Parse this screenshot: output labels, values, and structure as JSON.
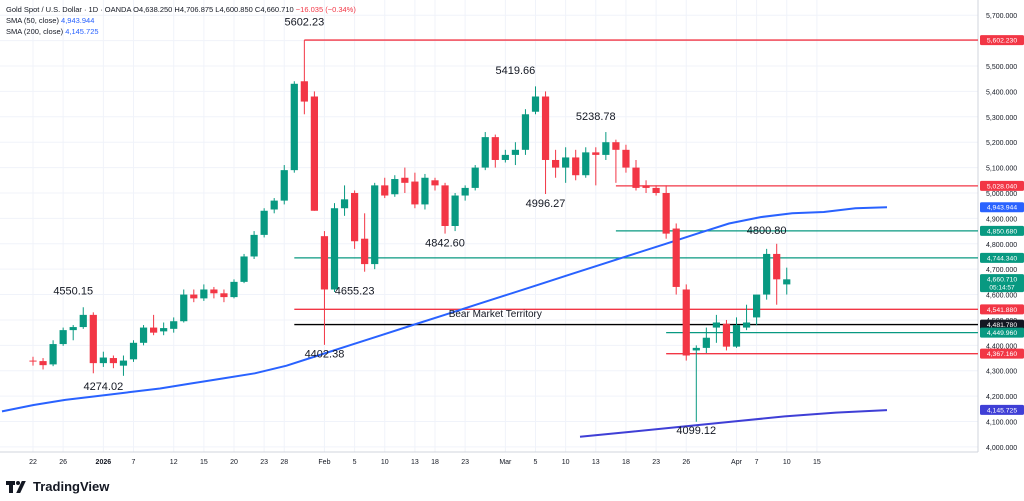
{
  "legend": {
    "symbol": "Gold Spot / U.S. Dollar · 1D · OANDA",
    "ohlc": "O4,638.250  H4,706.875  L4,600.850  C4,660.710",
    "change": "−16.035 (−0.34%)",
    "sma50_label": "SMA (50, close)",
    "sma50_value": "4,943.944",
    "sma200_label": "SMA (200, close)",
    "sma200_value": "4,145.725"
  },
  "brand": {
    "name": "TradingView"
  },
  "colors": {
    "up": "#089981",
    "down": "#f23645",
    "sma": "#2962ff",
    "sma200": "#3f3fd6",
    "red_line": "#f23645",
    "teal_line": "#089981",
    "black_line": "#000000"
  },
  "chart_data": {
    "type": "candlestick",
    "ylim": [
      3980,
      5760
    ],
    "y_ticks": [
      4000,
      4100,
      4200,
      4300,
      4400,
      4500,
      4600,
      4700,
      4800,
      4900,
      5000,
      5100,
      5200,
      5300,
      5400,
      5500,
      5600,
      5700
    ],
    "y_tick_labels": [
      "4,000.000",
      "4,100.000",
      "4,200.000",
      "4,300.000",
      "4,400.000",
      "4,500.000",
      "4,600.000",
      "4,700.000",
      "4,800.000",
      "4,900.000",
      "5,000.000",
      "5,100.000",
      "5,200.000",
      "5,300.000",
      "5,400.000",
      "5,500.000",
      "5,600.000",
      "5,700.000"
    ],
    "x_ticks": [
      {
        "index": 0,
        "label": "22"
      },
      {
        "index": 3,
        "label": "26"
      },
      {
        "index": 7,
        "label": "2026"
      },
      {
        "index": 10,
        "label": "7"
      },
      {
        "index": 14,
        "label": "12"
      },
      {
        "index": 17,
        "label": "15"
      },
      {
        "index": 20,
        "label": "20"
      },
      {
        "index": 23,
        "label": "23"
      },
      {
        "index": 25,
        "label": "28"
      },
      {
        "index": 29,
        "label": "Feb"
      },
      {
        "index": 32,
        "label": "5"
      },
      {
        "index": 35,
        "label": "10"
      },
      {
        "index": 38,
        "label": "13"
      },
      {
        "index": 40,
        "label": "18"
      },
      {
        "index": 43,
        "label": "23"
      },
      {
        "index": 47,
        "label": "Mar"
      },
      {
        "index": 50,
        "label": "5"
      },
      {
        "index": 53,
        "label": "10"
      },
      {
        "index": 56,
        "label": "13"
      },
      {
        "index": 59,
        "label": "18"
      },
      {
        "index": 62,
        "label": "23"
      },
      {
        "index": 65,
        "label": "26"
      },
      {
        "index": 70,
        "label": "Apr"
      },
      {
        "index": 72,
        "label": "7"
      },
      {
        "index": 75,
        "label": "10"
      },
      {
        "index": 78,
        "label": "15"
      }
    ],
    "candles": [
      [
        4340,
        4355,
        4320,
        4338
      ],
      [
        4338,
        4350,
        4305,
        4322
      ],
      [
        4325,
        4420,
        4318,
        4405
      ],
      [
        4405,
        4470,
        4398,
        4460
      ],
      [
        4460,
        4480,
        4420,
        4472
      ],
      [
        4472,
        4550,
        4465,
        4520
      ],
      [
        4520,
        4530,
        4290,
        4330
      ],
      [
        4330,
        4375,
        4315,
        4352
      ],
      [
        4350,
        4360,
        4310,
        4330
      ],
      [
        4320,
        4360,
        4280,
        4340
      ],
      [
        4345,
        4420,
        4335,
        4410
      ],
      [
        4410,
        4480,
        4400,
        4470
      ],
      [
        4470,
        4520,
        4440,
        4450
      ],
      [
        4455,
        4490,
        4440,
        4468
      ],
      [
        4465,
        4510,
        4450,
        4495
      ],
      [
        4495,
        4620,
        4490,
        4600
      ],
      [
        4600,
        4620,
        4570,
        4585
      ],
      [
        4585,
        4640,
        4575,
        4620
      ],
      [
        4620,
        4630,
        4585,
        4605
      ],
      [
        4605,
        4620,
        4570,
        4590
      ],
      [
        4590,
        4660,
        4585,
        4650
      ],
      [
        4650,
        4760,
        4645,
        4750
      ],
      [
        4750,
        4850,
        4740,
        4835
      ],
      [
        4835,
        4940,
        4825,
        4930
      ],
      [
        4935,
        4980,
        4920,
        4970
      ],
      [
        4970,
        5110,
        4955,
        5090
      ],
      [
        5090,
        5440,
        5080,
        5430
      ],
      [
        5440,
        5602,
        5310,
        5360
      ],
      [
        5380,
        5400,
        4930,
        4930
      ],
      [
        4830,
        4850,
        4402,
        4620
      ],
      [
        4620,
        4960,
        4610,
        4940
      ],
      [
        4940,
        5030,
        4910,
        4975
      ],
      [
        5000,
        5010,
        4780,
        4810
      ],
      [
        4820,
        4920,
        4690,
        4720
      ],
      [
        4720,
        5040,
        4700,
        5030
      ],
      [
        5030,
        5060,
        4980,
        4990
      ],
      [
        4995,
        5070,
        4985,
        5055
      ],
      [
        5060,
        5100,
        5000,
        5040
      ],
      [
        5045,
        5080,
        4940,
        4955
      ],
      [
        4955,
        5075,
        4935,
        5060
      ],
      [
        5050,
        5060,
        5010,
        5030
      ],
      [
        5030,
        5040,
        4840,
        4870
      ],
      [
        4870,
        5000,
        4850,
        4990
      ],
      [
        4990,
        5030,
        4970,
        5020
      ],
      [
        5020,
        5110,
        5010,
        5100
      ],
      [
        5100,
        5240,
        5090,
        5220
      ],
      [
        5220,
        5230,
        5100,
        5130
      ],
      [
        5130,
        5170,
        5120,
        5150
      ],
      [
        5150,
        5200,
        5110,
        5170
      ],
      [
        5170,
        5330,
        5150,
        5310
      ],
      [
        5320,
        5420,
        5310,
        5380
      ],
      [
        5380,
        5400,
        4996,
        5130
      ],
      [
        5130,
        5170,
        5060,
        5100
      ],
      [
        5100,
        5180,
        5040,
        5140
      ],
      [
        5140,
        5170,
        5050,
        5070
      ],
      [
        5070,
        5180,
        5060,
        5160
      ],
      [
        5160,
        5180,
        5030,
        5150
      ],
      [
        5150,
        5240,
        5130,
        5200
      ],
      [
        5200,
        5210,
        5040,
        5170
      ],
      [
        5170,
        5190,
        5080,
        5100
      ],
      [
        5100,
        5130,
        5010,
        5020
      ],
      [
        5030,
        5050,
        5000,
        5020
      ],
      [
        5020,
        5030,
        4990,
        5000
      ],
      [
        5000,
        5030,
        4820,
        4840
      ],
      [
        4860,
        4880,
        4600,
        4630
      ],
      [
        4620,
        4640,
        4340,
        4360
      ],
      [
        4380,
        4400,
        4099,
        4390
      ],
      [
        4390,
        4470,
        4370,
        4430
      ],
      [
        4470,
        4520,
        4410,
        4490
      ],
      [
        4485,
        4500,
        4380,
        4395
      ],
      [
        4395,
        4510,
        4390,
        4480
      ],
      [
        4470,
        4560,
        4460,
        4490
      ],
      [
        4510,
        4600,
        4480,
        4600
      ],
      [
        4600,
        4780,
        4580,
        4760
      ],
      [
        4760,
        4800,
        4560,
        4660
      ],
      [
        4640,
        4706,
        4600,
        4660
      ]
    ],
    "sma200": {
      "from_index": 0,
      "values": [
        4140,
        4165,
        4185,
        4200,
        4215,
        4230,
        4250,
        4270,
        4290,
        4320,
        4360,
        4400,
        4440,
        4480,
        4520,
        4560,
        4600,
        4640,
        4680,
        4720,
        4760,
        4800,
        4840,
        4880,
        4905,
        4920,
        4925,
        4940,
        4944
      ]
    },
    "sma200_long": {
      "from_index": 50,
      "values": [
        4040,
        4060,
        4080,
        4100,
        4120,
        4135,
        4145
      ]
    },
    "h_levels": [
      {
        "price": 5602.23,
        "color_key": "red_line",
        "label": "5,602.230",
        "from_index": 27
      },
      {
        "price": 5028.04,
        "color_key": "red_line",
        "label": "5,028.040",
        "from_index": 58
      },
      {
        "price": 4850.68,
        "color_key": "teal_line",
        "label": "4,850.680",
        "from_index": 58
      },
      {
        "price": 4744.34,
        "color_key": "teal_line",
        "label": "4,744.340",
        "from_index": 26
      },
      {
        "price": 4541.88,
        "color_key": "red_line",
        "label": "4,541.880",
        "from_index": 26
      },
      {
        "price": 4481.78,
        "color_key": "black_line",
        "label": "4,481.780",
        "from_index": 26
      },
      {
        "price": 4449.96,
        "color_key": "teal_line",
        "label": "4,449.960",
        "from_index": 63
      },
      {
        "price": 4367.16,
        "color_key": "red_line",
        "label": "4,367.160",
        "from_index": 63
      }
    ],
    "price_tags": [
      {
        "price": 4943.944,
        "label": "4,943.944",
        "color_key": "sma"
      },
      {
        "price": 4660.71,
        "label": "4,660.710",
        "color_key": "up",
        "sub": "05:14:57"
      },
      {
        "price": 4145.725,
        "label": "4,145.725",
        "color_key": "sma200"
      }
    ],
    "annotations": [
      {
        "text": "5602.23",
        "index": 27,
        "price": 5660
      },
      {
        "text": "5419.66",
        "index": 48,
        "price": 5468
      },
      {
        "text": "5238.78",
        "index": 56,
        "price": 5288
      },
      {
        "text": "4996.27",
        "index": 51,
        "price": 4945
      },
      {
        "text": "4842.60",
        "index": 41,
        "price": 4790
      },
      {
        "text": "4655.23",
        "index": 32,
        "price": 4600
      },
      {
        "text": "4550.15",
        "index": 4,
        "price": 4600
      },
      {
        "text": "4274.02",
        "index": 7,
        "price": 4225
      },
      {
        "text": "4402.38",
        "index": 29,
        "price": 4352
      },
      {
        "text": "4099.12",
        "index": 66,
        "price": 4050
      },
      {
        "text": "4800.80",
        "index": 73,
        "price": 4838
      },
      {
        "text": "Bear Market Territory",
        "index": 46,
        "price": 4512
      }
    ]
  }
}
